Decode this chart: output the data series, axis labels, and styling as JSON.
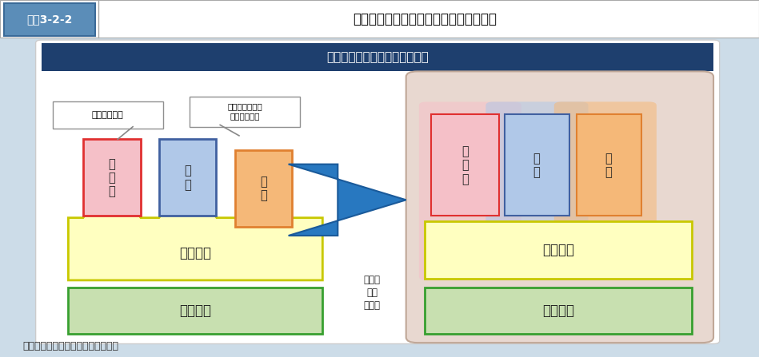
{
  "title_box_text": "図表3-2-2",
  "title_text": "重層的支援体制整備事業と他制度の関係",
  "header_text": "重層的支援体制整備事業の意義",
  "source_text": "資料：厚生労働省社会・援護局作成",
  "label_fukugo": "複合的な課題",
  "label_kankei": "関係性の貧困／\n狭間のニーズ",
  "label_seikatsu_konkyu": "生活困窮",
  "label_seikatsu_hogo": "生活保護",
  "label_kodomo": "子\nど\nも",
  "label_shogai": "障\n害",
  "label_koreiki": "高\n齢",
  "label_arrow_text": "新たな\n事業\n移行後",
  "title_bar_bg": "#5b8db8",
  "title_box_bg": "#5b8db8",
  "title_text_color": "#ffffff",
  "main_bg": "#ccdce8",
  "inner_panel_bg": "#ffffff",
  "inner_panel_border": "#cccccc",
  "header_bg": "#1e3f6e",
  "header_text_color": "#ffffff",
  "kodomo_fill": "#f5c0c8",
  "kodomo_border": "#e03030",
  "shogai_fill": "#b0c8e8",
  "shogai_border": "#4060a0",
  "koreiki_fill": "#f5b878",
  "koreiki_border": "#e08030",
  "seikatsu_k_fill": "#ffffc0",
  "seikatsu_k_border": "#c8c800",
  "seikatsu_h_fill": "#c8e0b0",
  "seikatsu_h_border": "#38a030",
  "arrow_fill": "#2878c0",
  "arrow_border": "#1a5a9a",
  "label_box_bg": "#ffffff",
  "label_box_border": "#909090",
  "right_outer_fill": "#e8d8d0",
  "right_outer_border": "#c0a898"
}
